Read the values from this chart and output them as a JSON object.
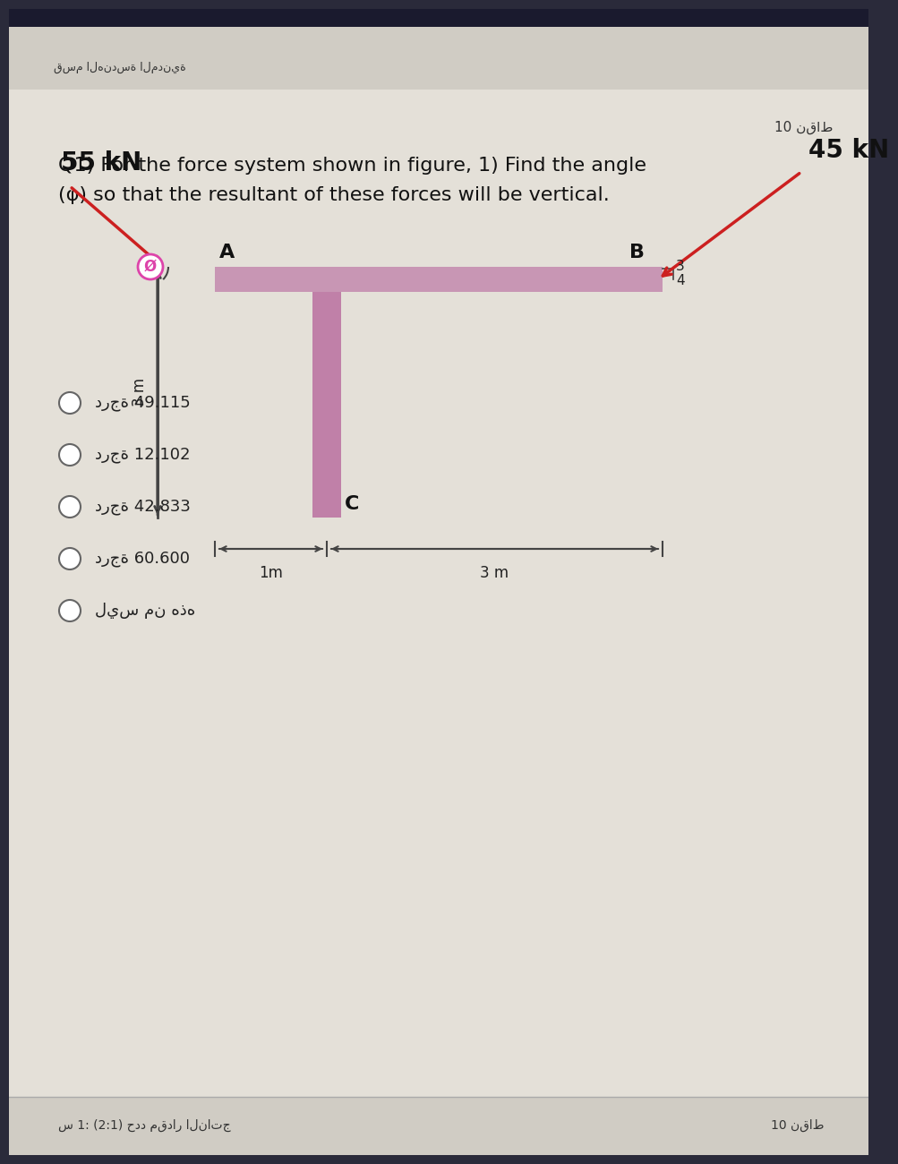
{
  "bg_outer": "#2a2a3a",
  "bg_top_bar": "#1a1a2e",
  "bg_main": "#e8e6e0",
  "bg_footer_area": "#d8d4cc",
  "card_color": "#ece9e2",
  "header_arabic": "قسم الهندسة المدنية",
  "score_top": "10 نقاط",
  "question_line1": "Q1) For the force system shown in figure, 1) Find the angle",
  "question_line2": "(φ) so that the resultant of these forces will be vertical.",
  "force1_label": "55 kN",
  "force2_label": "45 kN",
  "point_A": "A",
  "point_B": "B",
  "point_C": "C",
  "point_O": "Ø",
  "dim_vertical": "3 m",
  "dim_h1": "1m",
  "dim_h2": "3 m",
  "ratio_3": "3",
  "ratio_4": "4",
  "choices": [
    "درجة 49.115",
    "درجة 12.102",
    "درجة 42.833",
    "درجة 60.600",
    "ليس من هذه"
  ],
  "footer_left": "س 1: (2:1) حدد مقدار الناتج",
  "footer_right": "10 نقاط",
  "beam_color": "#c896b4",
  "stem_color": "#c080a8",
  "arrow_color": "#cc2020",
  "line_color": "#444444",
  "phi_circle_color": "#dd44aa"
}
